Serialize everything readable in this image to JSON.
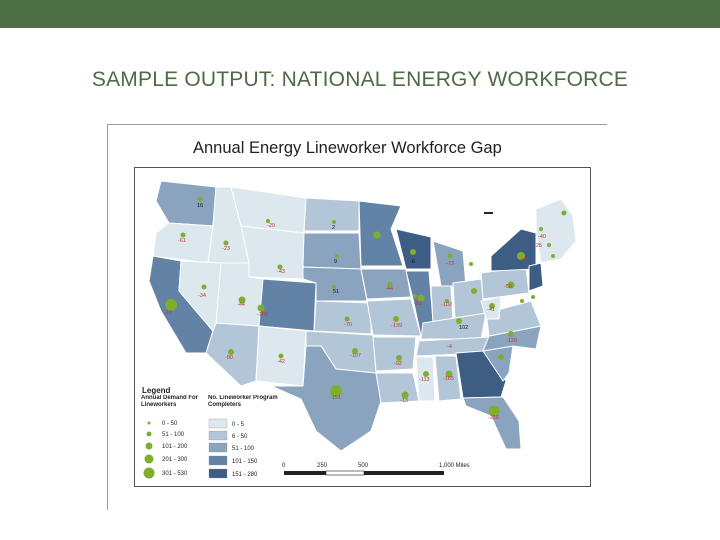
{
  "header": {
    "title": "SAMPLE OUTPUT: NATIONAL ENERGY WORKFORCE"
  },
  "map": {
    "title": "Annual Energy Lineworker Workforce Gap",
    "state_labels": [
      "16",
      "-29",
      "2",
      "-61",
      "-23",
      "-43",
      "9",
      "-34",
      "51",
      "-6",
      "-73",
      "-44",
      "-10",
      "-102",
      "-44",
      "-52",
      "-50",
      "-105",
      "-70",
      "-139",
      "102",
      "-42",
      "-107",
      "-92",
      "-113",
      "-165",
      "-80",
      "-216",
      "-151",
      "-4",
      "-120",
      "-13",
      "-41",
      "-82",
      "-25",
      "-40"
    ],
    "legend": {
      "title": "Legend",
      "demand_header": "Annual Demand For Lineworkers",
      "program_header": "No. Lineworker Program Completers",
      "demand_classes": [
        "0 - 50",
        "51 - 100",
        "101 - 200",
        "201 - 300",
        "301 - 530"
      ],
      "program_classes": [
        "0 - 5",
        "6 - 50",
        "51 - 100",
        "101 - 150",
        "151 - 280"
      ],
      "program_colors": [
        "#dde7ee",
        "#b3c6d8",
        "#8aa4c0",
        "#6283a6",
        "#3d5d85"
      ],
      "dot_color": "#7fae2e"
    },
    "scale_bar": {
      "ticks": [
        "0",
        "250",
        "500",
        "1,000 Miles"
      ]
    }
  }
}
